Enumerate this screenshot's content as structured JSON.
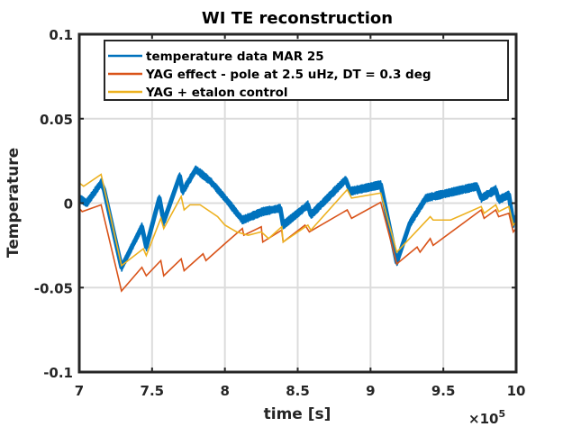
{
  "chart_data": {
    "type": "line",
    "title": "WI TE reconstruction",
    "xlabel": "time [s]",
    "ylabel": "Temperature",
    "x_multiplier_label": "×10",
    "x_multiplier_exponent": "5",
    "xlim": [
      7,
      10
    ],
    "ylim": [
      -0.1,
      0.1
    ],
    "xticks": [
      7,
      7.5,
      8,
      8.5,
      9,
      9.5,
      10
    ],
    "xtick_labels": [
      "7",
      "7.5",
      "8",
      "8.5",
      "9",
      "9.5",
      "10"
    ],
    "yticks": [
      -0.1,
      -0.05,
      0,
      0.05,
      0.1
    ],
    "ytick_labels": [
      "-0.1",
      "-0.05",
      "0",
      "0.05",
      "0.1"
    ],
    "grid": true,
    "legend_position": "top-right",
    "series": [
      {
        "name": "temperature data MAR 25",
        "color": "#0072BD",
        "style": "noisy-band",
        "x": [
          7.0,
          7.05,
          7.15,
          7.17,
          7.29,
          7.43,
          7.46,
          7.55,
          7.58,
          7.69,
          7.71,
          7.8,
          7.9,
          8.0,
          8.12,
          8.26,
          8.38,
          8.4,
          8.57,
          8.59,
          8.83,
          8.86,
          9.02,
          9.07,
          9.18,
          9.27,
          9.38,
          9.73,
          9.76,
          9.86,
          9.88,
          9.95,
          9.98,
          10.0
        ],
        "y": [
          0.003,
          0.0,
          0.012,
          0.008,
          -0.038,
          -0.014,
          -0.026,
          0.003,
          -0.011,
          0.016,
          0.007,
          0.02,
          0.013,
          0.003,
          -0.01,
          -0.005,
          -0.003,
          -0.013,
          -0.001,
          -0.007,
          0.014,
          0.007,
          0.01,
          0.011,
          -0.035,
          -0.012,
          0.003,
          0.01,
          0.003,
          0.008,
          0.002,
          0.005,
          -0.012,
          -0.008
        ]
      },
      {
        "name": "YAG effect - pole at 2.5 uHz, DT = 0.3 deg",
        "color": "#D95319",
        "style": "line",
        "x": [
          7.0,
          7.02,
          7.15,
          7.29,
          7.43,
          7.46,
          7.56,
          7.58,
          7.7,
          7.72,
          7.85,
          7.87,
          8.0,
          8.12,
          8.13,
          8.25,
          8.26,
          8.39,
          8.4,
          8.55,
          8.58,
          8.84,
          8.87,
          9.07,
          9.18,
          9.32,
          9.34,
          9.41,
          9.43,
          9.76,
          9.78,
          9.86,
          9.88,
          9.95,
          9.98,
          10.0
        ],
        "y": [
          -0.003,
          -0.005,
          -0.001,
          -0.052,
          -0.038,
          -0.043,
          -0.034,
          -0.043,
          -0.033,
          -0.04,
          -0.03,
          -0.034,
          -0.024,
          -0.015,
          -0.019,
          -0.014,
          -0.023,
          -0.016,
          -0.023,
          -0.013,
          -0.017,
          -0.004,
          -0.009,
          0.0005,
          -0.036,
          -0.026,
          -0.029,
          -0.021,
          -0.025,
          -0.004,
          -0.009,
          -0.004,
          -0.008,
          -0.006,
          -0.017,
          -0.015
        ]
      },
      {
        "name": "YAG + etalon control",
        "color": "#EDB120",
        "style": "line",
        "x": [
          7.0,
          7.03,
          7.15,
          7.29,
          7.44,
          7.46,
          7.56,
          7.58,
          7.7,
          7.72,
          7.76,
          7.83,
          7.95,
          8.0,
          8.08,
          8.16,
          8.25,
          8.3,
          8.39,
          8.4,
          8.57,
          8.59,
          8.84,
          8.87,
          9.07,
          9.18,
          9.41,
          9.43,
          9.55,
          9.76,
          9.78,
          9.86,
          9.88,
          9.95,
          9.98,
          10.0
        ],
        "y": [
          0.012,
          0.01,
          0.017,
          -0.037,
          -0.027,
          -0.031,
          -0.009,
          -0.015,
          0.004,
          -0.004,
          -0.001,
          -0.001,
          -0.008,
          -0.013,
          -0.017,
          -0.019,
          -0.017,
          -0.021,
          -0.014,
          -0.023,
          -0.013,
          -0.016,
          0.008,
          0.003,
          0.006,
          -0.029,
          -0.008,
          -0.01,
          -0.01,
          -0.002,
          -0.006,
          -0.001,
          -0.005,
          -0.002,
          -0.013,
          -0.011
        ]
      }
    ]
  }
}
